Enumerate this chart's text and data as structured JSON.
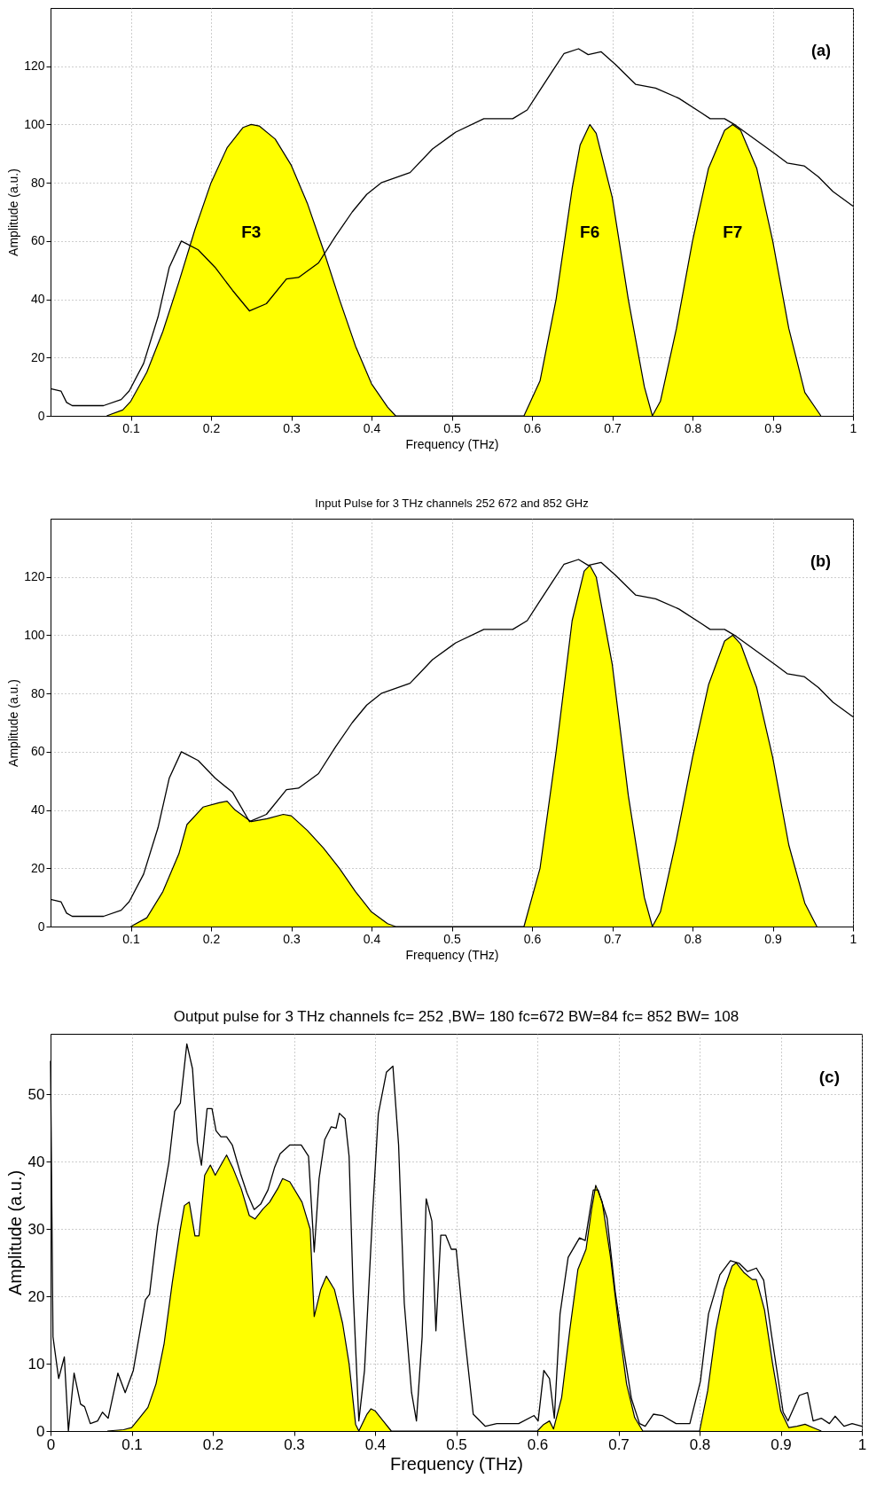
{
  "chart_data": [
    {
      "type": "area",
      "xlabel": "Frequency (THz)",
      "ylabel": "Amplitude (a.u.)",
      "xlim": [
        0,
        1
      ],
      "ylim": [
        0,
        140
      ],
      "xticks": [
        0.1,
        0.2,
        0.3,
        0.4,
        0.5,
        0.6,
        0.7,
        0.8,
        0.9,
        1
      ],
      "yticks": [
        0,
        20,
        40,
        60,
        80,
        100,
        120
      ],
      "grid": true,
      "annotations": [
        "(a)",
        "F3",
        "F6",
        "F7"
      ],
      "series": [
        {
          "type": "area",
          "color": "#ffff00",
          "x": [
            0.07,
            0.09,
            0.1,
            0.12,
            0.14,
            0.16,
            0.18,
            0.2,
            0.22,
            0.24,
            0.25,
            0.26,
            0.28,
            0.3,
            0.32,
            0.34,
            0.36,
            0.38,
            0.4,
            0.42,
            0.43,
            0.59,
            0.61,
            0.63,
            0.65,
            0.66,
            0.672,
            0.68,
            0.7,
            0.72,
            0.74,
            0.75,
            0.76,
            0.78,
            0.8,
            0.82,
            0.84,
            0.85,
            0.86,
            0.88,
            0.9,
            0.92,
            0.94,
            0.96
          ],
          "values": [
            0,
            2,
            5,
            15,
            29,
            46,
            64,
            80,
            92,
            99,
            100,
            99.5,
            95,
            86,
            73,
            57,
            40,
            24,
            11,
            3,
            0,
            0,
            12,
            40,
            78,
            93,
            100,
            97,
            75,
            40,
            10,
            0,
            5,
            30,
            60,
            85,
            98,
            100,
            98,
            85,
            60,
            30,
            8,
            0
          ]
        },
        {
          "type": "line",
          "color": "#000000",
          "x": [
            0,
            0.013,
            0.02,
            0.027,
            0.066,
            0.088,
            0.098,
            0.116,
            0.134,
            0.148,
            0.163,
            0.17,
            0.184,
            0.205,
            0.227,
            0.248,
            0.269,
            0.294,
            0.309,
            0.334,
            0.355,
            0.376,
            0.394,
            0.412,
            0.448,
            0.476,
            0.505,
            0.54,
            0.576,
            0.594,
            0.608,
            0.626,
            0.64,
            0.658,
            0.67,
            0.686,
            0.704,
            0.729,
            0.754,
            0.783,
            0.811,
            0.822,
            0.84,
            0.854,
            0.875,
            0.904,
            0.918,
            0.939,
            0.957,
            0.975,
            1
          ],
          "values": [
            9.3,
            8.5,
            4.6,
            3.5,
            3.5,
            5.6,
            8.5,
            18,
            34,
            51,
            60,
            59,
            57,
            51,
            43,
            36,
            38.5,
            47,
            47.5,
            52.5,
            61.6,
            70,
            76,
            80,
            83.5,
            91.6,
            97.4,
            102,
            102,
            105,
            111,
            118.6,
            124.4,
            126,
            124,
            125,
            120.6,
            113.8,
            112.5,
            109,
            104,
            102,
            102,
            99.7,
            95.5,
            89.7,
            86.8,
            85.8,
            82,
            77,
            72
          ]
        }
      ]
    },
    {
      "type": "area",
      "title": "Input Pulse for 3 THz channels 252 672 and 852 GHz",
      "xlabel": "Frequency (THz)",
      "ylabel": "Amplitude (a.u.)",
      "xlim": [
        0,
        1
      ],
      "ylim": [
        0,
        140
      ],
      "xticks": [
        0.1,
        0.2,
        0.3,
        0.4,
        0.5,
        0.6,
        0.7,
        0.8,
        0.9,
        1
      ],
      "yticks": [
        0,
        20,
        40,
        60,
        80,
        100,
        120
      ],
      "grid": true,
      "annotations": [
        "(b)"
      ],
      "series": [
        {
          "type": "area",
          "color": "#ffff00",
          "x": [
            0.1,
            0.12,
            0.14,
            0.16,
            0.17,
            0.19,
            0.21,
            0.22,
            0.23,
            0.25,
            0.27,
            0.29,
            0.3,
            0.32,
            0.34,
            0.36,
            0.38,
            0.4,
            0.42,
            0.43,
            0.59,
            0.61,
            0.63,
            0.65,
            0.665,
            0.672,
            0.68,
            0.7,
            0.72,
            0.74,
            0.75,
            0.76,
            0.78,
            0.8,
            0.82,
            0.84,
            0.85,
            0.86,
            0.88,
            0.9,
            0.92,
            0.94,
            0.955
          ],
          "values": [
            0,
            3,
            12,
            25,
            35,
            41,
            42.5,
            43,
            40,
            36,
            37,
            38.5,
            38,
            33,
            27,
            20,
            12,
            5,
            1,
            0,
            0,
            20,
            60,
            105,
            122,
            124,
            120,
            90,
            45,
            10,
            0,
            5,
            30,
            58,
            83,
            98,
            100,
            97,
            82,
            58,
            28,
            8,
            0
          ]
        },
        {
          "type": "line",
          "color": "#000000",
          "x": [
            0,
            0.013,
            0.02,
            0.027,
            0.066,
            0.088,
            0.098,
            0.116,
            0.134,
            0.148,
            0.163,
            0.17,
            0.184,
            0.205,
            0.227,
            0.248,
            0.269,
            0.294,
            0.309,
            0.334,
            0.355,
            0.376,
            0.394,
            0.412,
            0.448,
            0.476,
            0.505,
            0.54,
            0.576,
            0.594,
            0.608,
            0.626,
            0.64,
            0.658,
            0.67,
            0.686,
            0.704,
            0.729,
            0.754,
            0.783,
            0.811,
            0.822,
            0.84,
            0.854,
            0.875,
            0.904,
            0.918,
            0.939,
            0.957,
            0.975,
            1
          ],
          "values": [
            9.3,
            8.5,
            4.6,
            3.5,
            3.5,
            5.6,
            8.5,
            18,
            34,
            51,
            60,
            59,
            57,
            51,
            46,
            36,
            38.5,
            47,
            47.5,
            52.5,
            61.6,
            70,
            76,
            80,
            83.5,
            91.6,
            97.4,
            102,
            102,
            105,
            111,
            118.6,
            124.4,
            126,
            124,
            125,
            120.6,
            113.8,
            112.5,
            109,
            104,
            102,
            102,
            99.7,
            95.5,
            89.7,
            86.8,
            85.8,
            82,
            77,
            72
          ]
        }
      ]
    },
    {
      "type": "area",
      "title": "Output pulse for 3 THz channels fc= 252 ,BW= 180 fc=672 BW=84 fc= 852 BW= 108",
      "xlabel": "Frequency (THz)",
      "ylabel": "Amplitude (a.u.)",
      "xlim": [
        0,
        1
      ],
      "ylim": [
        0,
        59
      ],
      "xticks": [
        0,
        0.1,
        0.2,
        0.3,
        0.4,
        0.5,
        0.6,
        0.7,
        0.8,
        0.9,
        1
      ],
      "yticks": [
        0,
        10,
        20,
        30,
        40,
        50
      ],
      "grid": true,
      "annotations": [
        "(c)"
      ],
      "series": [
        {
          "type": "area",
          "color": "#ffff00",
          "x": [
            0.07,
            0.09,
            0.1,
            0.11,
            0.12,
            0.13,
            0.14,
            0.15,
            0.16,
            0.165,
            0.171,
            0.178,
            0.183,
            0.19,
            0.197,
            0.203,
            0.21,
            0.217,
            0.225,
            0.235,
            0.245,
            0.252,
            0.262,
            0.27,
            0.28,
            0.286,
            0.295,
            0.31,
            0.32,
            0.325,
            0.333,
            0.34,
            0.35,
            0.36,
            0.368,
            0.376,
            0.38,
            0.39,
            0.395,
            0.4,
            0.41,
            0.42,
            0.6,
            0.608,
            0.615,
            0.62,
            0.63,
            0.64,
            0.65,
            0.66,
            0.667,
            0.672,
            0.68,
            0.69,
            0.7,
            0.71,
            0.72,
            0.73,
            0.8,
            0.81,
            0.82,
            0.83,
            0.84,
            0.845,
            0.855,
            0.865,
            0.87,
            0.88,
            0.89,
            0.9,
            0.91,
            0.92,
            0.93,
            0.94,
            0.95
          ],
          "values": [
            0,
            0.2,
            0.5,
            2,
            3.5,
            7,
            13,
            22,
            30,
            33.5,
            34,
            29,
            29,
            38,
            39.5,
            38,
            39.5,
            41,
            39,
            36,
            32,
            31.5,
            33,
            34,
            36,
            37.5,
            37,
            34,
            30,
            17,
            21,
            23,
            21,
            16,
            10,
            1,
            0,
            2.5,
            3.3,
            3,
            1.5,
            0,
            0,
            1,
            1.5,
            0.3,
            5,
            15,
            24,
            27,
            33,
            36.5,
            34,
            26,
            16,
            7,
            2,
            0,
            0,
            6,
            15,
            21,
            24.5,
            25,
            23.5,
            22.5,
            22.5,
            18,
            10,
            3,
            0.5,
            0.7,
            1,
            0.5,
            0
          ]
        },
        {
          "type": "line",
          "color": "#000000",
          "x": [
            0,
            0.003,
            0.01,
            0.017,
            0.022,
            0.029,
            0.037,
            0.042,
            0.049,
            0.058,
            0.064,
            0.071,
            0.083,
            0.092,
            0.102,
            0.117,
            0.122,
            0.132,
            0.146,
            0.153,
            0.16,
            0.168,
            0.175,
            0.181,
            0.186,
            0.193,
            0.199,
            0.204,
            0.21,
            0.217,
            0.224,
            0.234,
            0.242,
            0.251,
            0.259,
            0.268,
            0.276,
            0.283,
            0.295,
            0.309,
            0.318,
            0.325,
            0.331,
            0.338,
            0.346,
            0.352,
            0.356,
            0.363,
            0.368,
            0.373,
            0.38,
            0.387,
            0.397,
            0.404,
            0.414,
            0.422,
            0.429,
            0.436,
            0.445,
            0.451,
            0.458,
            0.463,
            0.47,
            0.475,
            0.481,
            0.487,
            0.494,
            0.5,
            0.509,
            0.521,
            0.536,
            0.55,
            0.577,
            0.596,
            0.601,
            0.608,
            0.615,
            0.621,
            0.628,
            0.638,
            0.652,
            0.659,
            0.669,
            0.675,
            0.686,
            0.696,
            0.706,
            0.716,
            0.726,
            0.733,
            0.743,
            0.754,
            0.771,
            0.788,
            0.801,
            0.811,
            0.825,
            0.838,
            0.849,
            0.859,
            0.87,
            0.879,
            0.889,
            0.903,
            0.909,
            0.923,
            0.933,
            0.94,
            0.95,
            0.96,
            0.967,
            0.978,
            0.988,
            1
          ],
          "values": [
            55,
            14,
            7.8,
            11,
            0,
            8.6,
            4,
            3.6,
            1.1,
            1.5,
            2.8,
            1.9,
            8.6,
            5.7,
            9,
            19.5,
            20.3,
            30.4,
            40,
            47.5,
            48.7,
            57.5,
            53.8,
            42.9,
            39.5,
            47.9,
            47.9,
            44.6,
            43.7,
            43.7,
            42.5,
            38.3,
            35.4,
            32.9,
            33.7,
            35.8,
            39.1,
            41.2,
            42.5,
            42.5,
            40.8,
            26.6,
            37.5,
            43.3,
            45.2,
            45,
            47.2,
            46.4,
            40.8,
            20.7,
            1.5,
            9,
            32.4,
            47.1,
            53.3,
            54.2,
            42.5,
            19,
            5.7,
            1.5,
            14,
            34.5,
            31.2,
            14.9,
            29.1,
            29.1,
            27,
            27,
            15.7,
            2.5,
            0.7,
            1.1,
            1.1,
            2.3,
            1.5,
            9,
            7.8,
            1.9,
            17.4,
            25.8,
            28.7,
            28.3,
            35.8,
            35.8,
            31.6,
            20.7,
            12.4,
            4.8,
            1.1,
            0.7,
            2.5,
            2.3,
            1.1,
            1.1,
            7.4,
            17.4,
            23.2,
            25.3,
            24.9,
            23.7,
            24.2,
            22.4,
            14,
            2.8,
            1.5,
            5.3,
            5.7,
            1.5,
            1.9,
            1.1,
            2.2,
            0.7,
            1.1,
            0.7
          ]
        }
      ]
    }
  ]
}
